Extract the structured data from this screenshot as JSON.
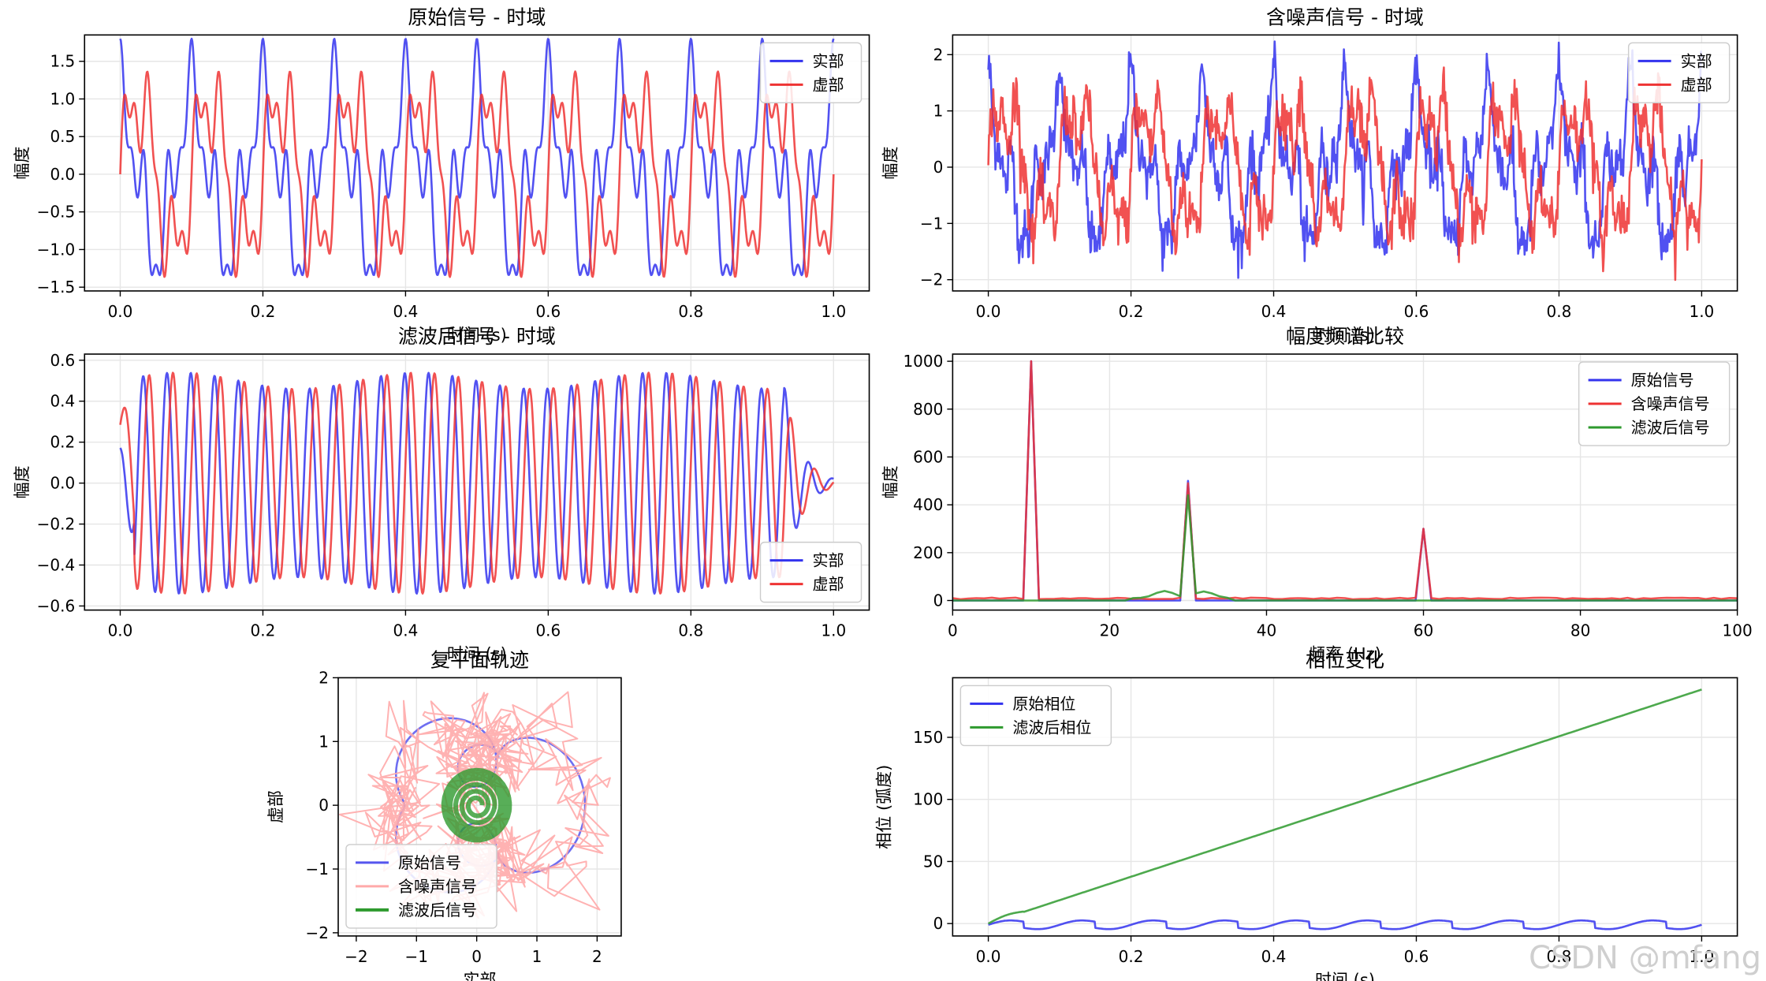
{
  "chart_data": [
    {
      "id": "p1",
      "type": "line",
      "title": "原始信号 - 时域",
      "xlabel": "时间 (s)",
      "ylabel": "幅度",
      "xlim": [
        -0.05,
        1.05
      ],
      "ylim": [
        -1.55,
        1.85
      ],
      "xticks": [
        0,
        0.2,
        0.4,
        0.6,
        0.8,
        1.0
      ],
      "xtick_labels": [
        "0.0",
        "0.2",
        "0.4",
        "0.6",
        "0.8",
        "1.0"
      ],
      "yticks": [
        -1.5,
        -1.0,
        -0.5,
        0.0,
        0.5,
        1.0,
        1.5
      ],
      "ytick_labels": [
        "−1.5",
        "−1.0",
        "−0.5",
        "0.0",
        "0.5",
        "1.0",
        "1.5"
      ],
      "grid": true,
      "legend_loc": "upper-right",
      "series": [
        {
          "name": "实部",
          "color": "#3333ee",
          "gen": "orig_re",
          "n": 1100
        },
        {
          "name": "虚部",
          "color": "#ee3333",
          "gen": "orig_im",
          "n": 1100
        }
      ]
    },
    {
      "id": "p2",
      "type": "line",
      "title": "含噪声信号 - 时域",
      "xlabel": "时间 (s)",
      "ylabel": "幅度",
      "xlim": [
        -0.05,
        1.05
      ],
      "ylim": [
        -2.2,
        2.35
      ],
      "xticks": [
        0,
        0.2,
        0.4,
        0.6,
        0.8,
        1.0
      ],
      "xtick_labels": [
        "0.0",
        "0.2",
        "0.4",
        "0.6",
        "0.8",
        "1.0"
      ],
      "yticks": [
        -2,
        -1,
        0,
        1,
        2
      ],
      "ytick_labels": [
        "−2",
        "−1",
        "0",
        "1",
        "2"
      ],
      "grid": true,
      "legend_loc": "upper-right",
      "series": [
        {
          "name": "实部",
          "color": "#3333ee",
          "gen": "noisy_re",
          "n": 1000
        },
        {
          "name": "虚部",
          "color": "#ee3333",
          "gen": "noisy_im",
          "n": 1000
        }
      ]
    },
    {
      "id": "p3",
      "type": "line",
      "title": "滤波后信号 - 时域",
      "xlabel": "时间 (s)",
      "ylabel": "幅度",
      "xlim": [
        -0.05,
        1.05
      ],
      "ylim": [
        -0.62,
        0.63
      ],
      "xticks": [
        0,
        0.2,
        0.4,
        0.6,
        0.8,
        1.0
      ],
      "xtick_labels": [
        "0.0",
        "0.2",
        "0.4",
        "0.6",
        "0.8",
        "1.0"
      ],
      "yticks": [
        -0.6,
        -0.4,
        -0.2,
        0.0,
        0.2,
        0.4,
        0.6
      ],
      "ytick_labels": [
        "−0.6",
        "−0.4",
        "−0.2",
        "0.0",
        "0.2",
        "0.4",
        "0.6"
      ],
      "grid": true,
      "legend_loc": "lower-right",
      "series": [
        {
          "name": "实部",
          "color": "#3333ee",
          "gen": "filt_re",
          "n": 1100
        },
        {
          "name": "虚部",
          "color": "#ee3333",
          "gen": "filt_im",
          "n": 1100
        }
      ]
    },
    {
      "id": "p4",
      "type": "line",
      "title": "幅度频谱比较",
      "xlabel": "频率 (Hz)",
      "ylabel": "幅度",
      "xlim": [
        0,
        100
      ],
      "ylim": [
        -40,
        1030
      ],
      "xticks": [
        0,
        20,
        40,
        60,
        80,
        100
      ],
      "xtick_labels": [
        "0",
        "20",
        "40",
        "60",
        "80",
        "100"
      ],
      "yticks": [
        0,
        200,
        400,
        600,
        800,
        1000
      ],
      "ytick_labels": [
        "0",
        "200",
        "400",
        "600",
        "800",
        "1000"
      ],
      "grid": true,
      "legend_loc": "upper-right",
      "series": [
        {
          "name": "原始信号",
          "color": "#3333ee",
          "gen": "spec_orig",
          "n": 101
        },
        {
          "name": "含噪声信号",
          "color": "#ee3333",
          "gen": "spec_noisy",
          "n": 101
        },
        {
          "name": "滤波后信号",
          "color": "#2e9a2e",
          "gen": "spec_filt",
          "n": 101
        }
      ]
    },
    {
      "id": "p5",
      "type": "line",
      "title": "复平面轨迹",
      "xlabel": "实部",
      "ylabel": "虚部",
      "xlim": [
        -2.3,
        2.4
      ],
      "ylim": [
        -2.05,
        2.0
      ],
      "xticks": [
        -2,
        -1,
        0,
        1,
        2
      ],
      "xtick_labels": [
        "−2",
        "−1",
        "0",
        "1",
        "2"
      ],
      "yticks": [
        -2,
        -1,
        0,
        1,
        2
      ],
      "ytick_labels": [
        "−2",
        "−1",
        "0",
        "1",
        "2"
      ],
      "grid": true,
      "legend_loc": "lower-left",
      "series": [
        {
          "name": "原始信号",
          "color": "#5555ee",
          "gen": "traj_orig",
          "n": 1000
        },
        {
          "name": "含噪声信号",
          "color": "#ffaaaa",
          "gen": "traj_noisy",
          "n": 1000
        },
        {
          "name": "滤波后信号",
          "color": "#2e9a2e",
          "gen": "traj_filt",
          "n": 1000
        }
      ]
    },
    {
      "id": "p6",
      "type": "line",
      "title": "相位变化",
      "xlabel": "时间 (s)",
      "ylabel": "相位 (弧度)",
      "xlim": [
        -0.05,
        1.05
      ],
      "ylim": [
        -10,
        198
      ],
      "xticks": [
        0,
        0.2,
        0.4,
        0.6,
        0.8,
        1.0
      ],
      "xtick_labels": [
        "0.0",
        "0.2",
        "0.4",
        "0.6",
        "0.8",
        "1.0"
      ],
      "yticks": [
        0,
        50,
        100,
        150
      ],
      "ytick_labels": [
        "0",
        "50",
        "100",
        "150"
      ],
      "grid": true,
      "legend_loc": "upper-left",
      "series": [
        {
          "name": "原始相位",
          "color": "#3333ee",
          "gen": "phase_orig",
          "n": 1000
        },
        {
          "name": "滤波后相位",
          "color": "#2e9a2e",
          "gen": "phase_filt",
          "n": 1000
        }
      ]
    }
  ],
  "watermark": "CSDN @mfang"
}
